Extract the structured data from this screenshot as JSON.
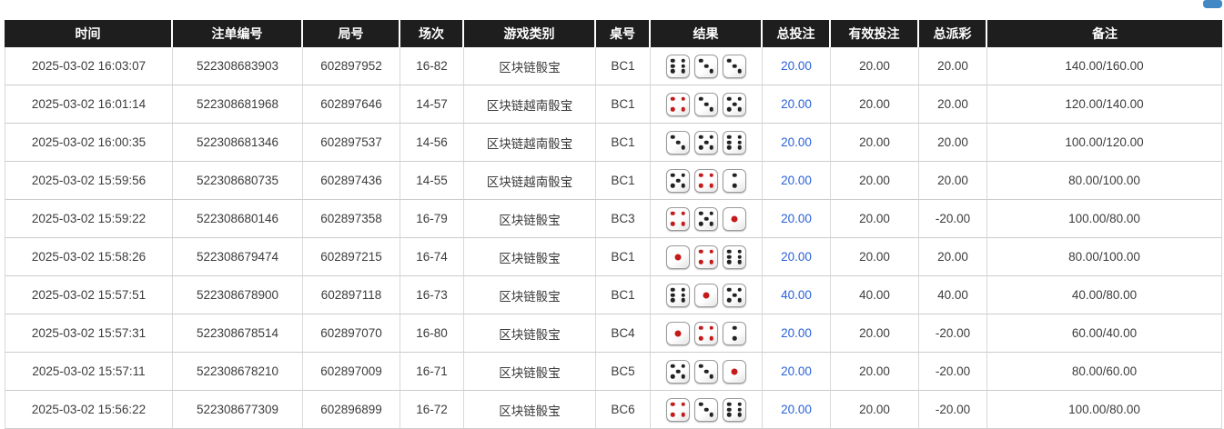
{
  "page": {
    "partial_button": {
      "name": "partial-top-button",
      "color": "#4288c5"
    }
  },
  "colors": {
    "header_bg": "#1e1e1e",
    "header_text": "#ffffff",
    "bet_amount_blue": "#2a62d9",
    "negative_amount_red": "#e02840",
    "dice_pip_black": "#222222",
    "dice_pip_red": "#c41a1a",
    "dice_red_values": [
      1,
      4
    ]
  },
  "table": {
    "headers": [
      {
        "key": "time",
        "label": "时间"
      },
      {
        "key": "bet_id",
        "label": "注单编号"
      },
      {
        "key": "round_id",
        "label": "局号"
      },
      {
        "key": "session",
        "label": "场次"
      },
      {
        "key": "game",
        "label": "游戏类别"
      },
      {
        "key": "table_no",
        "label": "桌号"
      },
      {
        "key": "result",
        "label": "结果"
      },
      {
        "key": "total_bet",
        "label": "总投注"
      },
      {
        "key": "valid_bet",
        "label": "有效投注"
      },
      {
        "key": "payout",
        "label": "总派彩"
      },
      {
        "key": "remark",
        "label": "备注"
      }
    ],
    "rows": [
      {
        "time": "2025-03-02 16:03:07",
        "bet_id": "522308683903",
        "round_id": "602897952",
        "session": "16-82",
        "game": "区块链骰宝",
        "table_no": "BC1",
        "dice": [
          6,
          3,
          3
        ],
        "total_bet": "20.00",
        "valid_bet": "20.00",
        "payout": "20.00",
        "remark": "140.00/160.00"
      },
      {
        "time": "2025-03-02 16:01:14",
        "bet_id": "522308681968",
        "round_id": "602897646",
        "session": "14-57",
        "game": "区块链越南骰宝",
        "table_no": "BC1",
        "dice": [
          4,
          3,
          5
        ],
        "total_bet": "20.00",
        "valid_bet": "20.00",
        "payout": "20.00",
        "remark": "120.00/140.00"
      },
      {
        "time": "2025-03-02 16:00:35",
        "bet_id": "522308681346",
        "round_id": "602897537",
        "session": "14-56",
        "game": "区块链越南骰宝",
        "table_no": "BC1",
        "dice": [
          3,
          5,
          6
        ],
        "total_bet": "20.00",
        "valid_bet": "20.00",
        "payout": "20.00",
        "remark": "100.00/120.00"
      },
      {
        "time": "2025-03-02 15:59:56",
        "bet_id": "522308680735",
        "round_id": "602897436",
        "session": "14-55",
        "game": "区块链越南骰宝",
        "table_no": "BC1",
        "dice": [
          5,
          4,
          2
        ],
        "total_bet": "20.00",
        "valid_bet": "20.00",
        "payout": "20.00",
        "remark": "80.00/100.00"
      },
      {
        "time": "2025-03-02 15:59:22",
        "bet_id": "522308680146",
        "round_id": "602897358",
        "session": "16-79",
        "game": "区块链骰宝",
        "table_no": "BC3",
        "dice": [
          4,
          5,
          1
        ],
        "total_bet": "20.00",
        "valid_bet": "20.00",
        "payout": "-20.00",
        "remark": "100.00/80.00"
      },
      {
        "time": "2025-03-02 15:58:26",
        "bet_id": "522308679474",
        "round_id": "602897215",
        "session": "16-74",
        "game": "区块链骰宝",
        "table_no": "BC1",
        "dice": [
          1,
          4,
          6
        ],
        "total_bet": "20.00",
        "valid_bet": "20.00",
        "payout": "20.00",
        "remark": "80.00/100.00"
      },
      {
        "time": "2025-03-02 15:57:51",
        "bet_id": "522308678900",
        "round_id": "602897118",
        "session": "16-73",
        "game": "区块链骰宝",
        "table_no": "BC1",
        "dice": [
          6,
          1,
          5
        ],
        "total_bet": "40.00",
        "valid_bet": "40.00",
        "payout": "40.00",
        "remark": "40.00/80.00"
      },
      {
        "time": "2025-03-02 15:57:31",
        "bet_id": "522308678514",
        "round_id": "602897070",
        "session": "16-80",
        "game": "区块链骰宝",
        "table_no": "BC4",
        "dice": [
          1,
          4,
          2
        ],
        "total_bet": "20.00",
        "valid_bet": "20.00",
        "payout": "-20.00",
        "remark": "60.00/40.00"
      },
      {
        "time": "2025-03-02 15:57:11",
        "bet_id": "522308678210",
        "round_id": "602897009",
        "session": "16-71",
        "game": "区块链骰宝",
        "table_no": "BC5",
        "dice": [
          5,
          3,
          1
        ],
        "total_bet": "20.00",
        "valid_bet": "20.00",
        "payout": "-20.00",
        "remark": "80.00/60.00"
      },
      {
        "time": "2025-03-02 15:56:22",
        "bet_id": "522308677309",
        "round_id": "602896899",
        "session": "16-72",
        "game": "区块链骰宝",
        "table_no": "BC6",
        "dice": [
          4,
          3,
          6
        ],
        "total_bet": "20.00",
        "valid_bet": "20.00",
        "payout": "-20.00",
        "remark": "100.00/80.00"
      }
    ]
  }
}
